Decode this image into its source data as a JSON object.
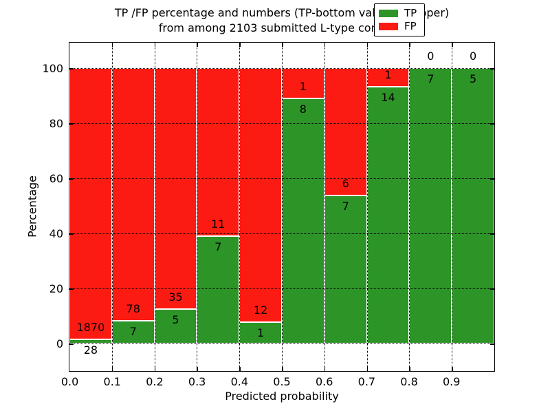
{
  "title": {
    "line1": "TP /FP percentage and numbers (TP-bottom value, FP-upper)",
    "line2": "from among 2103 submitted L-type contacts"
  },
  "axes": {
    "xlabel": "Predicted probability",
    "ylabel": "Percentage",
    "x_tick_labels": [
      "0.0",
      "0.1",
      "0.2",
      "0.3",
      "0.4",
      "0.5",
      "0.6",
      "0.7",
      "0.8",
      "0.9"
    ],
    "y_tick_labels": [
      "0",
      "20",
      "40",
      "60",
      "80",
      "100"
    ],
    "y_tick_values": [
      0,
      20,
      40,
      60,
      80,
      100
    ],
    "grid": "dotted black, drawn over bars"
  },
  "legend": {
    "position": "upper right",
    "items": [
      {
        "label": "TP",
        "color": "#2d9428"
      },
      {
        "label": "FP",
        "color": "#fc1b12"
      }
    ]
  },
  "colors": {
    "tp": "#2d9428",
    "fp": "#fc1b12",
    "bar_edge": "#ffffff",
    "grid": "#000000",
    "background": "#ffffff"
  },
  "chart_data": {
    "type": "bar",
    "stacked": true,
    "normalized_to_percent": true,
    "total_contacts": 2103,
    "x_bin_width": 0.1,
    "xlim": [
      0.0,
      1.0
    ],
    "ylim_percent": [
      0,
      100
    ],
    "bins": [
      {
        "range": "0.0-0.1",
        "tp": 28,
        "fp": 1870,
        "tp_percent": 1.48
      },
      {
        "range": "0.1-0.2",
        "tp": 7,
        "fp": 78,
        "tp_percent": 8.24
      },
      {
        "range": "0.2-0.3",
        "tp": 5,
        "fp": 35,
        "tp_percent": 12.5
      },
      {
        "range": "0.3-0.4",
        "tp": 7,
        "fp": 11,
        "tp_percent": 38.89
      },
      {
        "range": "0.4-0.5",
        "tp": 1,
        "fp": 12,
        "tp_percent": 7.69
      },
      {
        "range": "0.5-0.6",
        "tp": 8,
        "fp": 1,
        "tp_percent": 88.89
      },
      {
        "range": "0.6-0.7",
        "tp": 7,
        "fp": 6,
        "tp_percent": 53.85
      },
      {
        "range": "0.7-0.8",
        "tp": 14,
        "fp": 1,
        "tp_percent": 93.33
      },
      {
        "range": "0.8-0.9",
        "tp": 7,
        "fp": 0,
        "tp_percent": 100
      },
      {
        "range": "0.9-1.0",
        "tp": 5,
        "fp": 0,
        "tp_percent": 100
      }
    ]
  }
}
